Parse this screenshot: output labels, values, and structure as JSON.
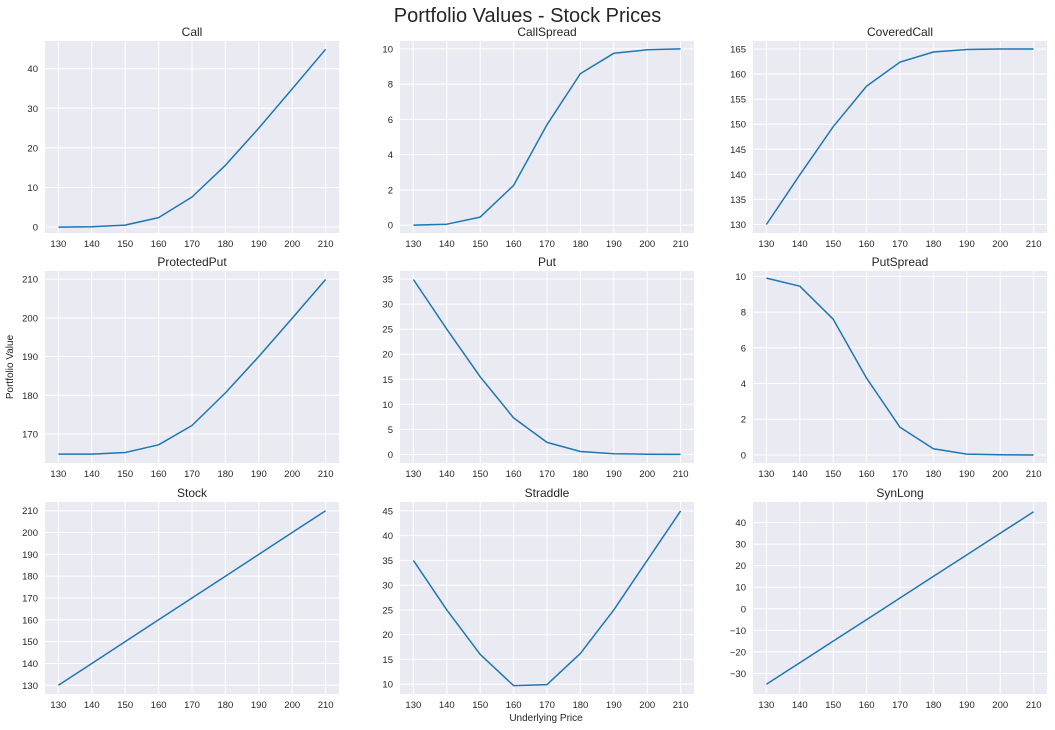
{
  "figure": {
    "title": "Portfolio Values - Stock Prices",
    "ylabel": "Portfolio Value",
    "xlabel": "Underlying Price",
    "colors": {
      "background": "#eaeaf2",
      "grid": "#ffffff",
      "line": "#1f77b4"
    }
  },
  "chart_data": [
    {
      "type": "line",
      "title": "Call",
      "x": [
        130,
        140,
        150,
        160,
        170,
        180,
        190,
        200,
        210
      ],
      "values": [
        0.0,
        0.1,
        0.5,
        2.4,
        7.6,
        15.6,
        25.0,
        34.9,
        44.9
      ],
      "ylim": [
        -1.5,
        47
      ],
      "yticks": [
        0,
        10,
        20,
        30,
        40
      ]
    },
    {
      "type": "line",
      "title": "CallSpread",
      "x": [
        130,
        140,
        150,
        160,
        170,
        180,
        190,
        200,
        210
      ],
      "values": [
        0.0,
        0.05,
        0.45,
        2.25,
        5.7,
        8.6,
        9.75,
        9.95,
        10.0
      ],
      "ylim": [
        -0.45,
        10.45
      ],
      "yticks": [
        0,
        2,
        4,
        6,
        8,
        10
      ]
    },
    {
      "type": "line",
      "title": "CoveredCall",
      "x": [
        130,
        140,
        150,
        160,
        170,
        180,
        190,
        200,
        210
      ],
      "values": [
        130.0,
        139.9,
        149.5,
        157.6,
        162.4,
        164.4,
        164.9,
        165.0,
        165.0
      ],
      "ylim": [
        128.3,
        166.6
      ],
      "yticks": [
        130,
        135,
        140,
        145,
        150,
        155,
        160,
        165
      ]
    },
    {
      "type": "line",
      "title": "ProtectedPut",
      "x": [
        130,
        140,
        150,
        160,
        170,
        180,
        190,
        200,
        210
      ],
      "values": [
        164.8,
        164.8,
        165.2,
        167.2,
        172.2,
        180.6,
        190.0,
        199.9,
        209.9
      ],
      "ylim": [
        162.5,
        212.1
      ],
      "yticks": [
        170,
        180,
        190,
        200,
        210
      ]
    },
    {
      "type": "line",
      "title": "Put",
      "x": [
        130,
        140,
        150,
        160,
        170,
        180,
        190,
        200,
        210
      ],
      "values": [
        34.9,
        25.0,
        15.5,
        7.3,
        2.4,
        0.6,
        0.15,
        0.05,
        0.02
      ],
      "ylim": [
        -1.7,
        36.6
      ],
      "yticks": [
        0,
        5,
        10,
        15,
        20,
        25,
        30,
        35
      ]
    },
    {
      "type": "line",
      "title": "PutSpread",
      "x": [
        130,
        140,
        150,
        160,
        170,
        180,
        190,
        200,
        210
      ],
      "values": [
        9.9,
        9.45,
        7.6,
        4.3,
        1.55,
        0.35,
        0.05,
        0.01,
        0.0
      ],
      "ylim": [
        -0.45,
        10.3
      ],
      "yticks": [
        0,
        2,
        4,
        6,
        8,
        10
      ]
    },
    {
      "type": "line",
      "title": "Stock",
      "x": [
        130,
        140,
        150,
        160,
        170,
        180,
        190,
        200,
        210
      ],
      "values": [
        130,
        140,
        150,
        160,
        170,
        180,
        190,
        200,
        210
      ],
      "ylim": [
        126,
        214
      ],
      "yticks": [
        130,
        140,
        150,
        160,
        170,
        180,
        190,
        200,
        210
      ]
    },
    {
      "type": "line",
      "title": "Straddle",
      "x": [
        130,
        140,
        150,
        160,
        170,
        180,
        190,
        200,
        210
      ],
      "values": [
        35.0,
        25.0,
        16.0,
        9.7,
        9.9,
        16.2,
        25.0,
        35.0,
        45.0
      ],
      "ylim": [
        8.0,
        46.8
      ],
      "yticks": [
        10,
        15,
        20,
        25,
        30,
        35,
        40,
        45
      ]
    },
    {
      "type": "line",
      "title": "SynLong",
      "x": [
        130,
        140,
        150,
        160,
        170,
        180,
        190,
        200,
        210
      ],
      "values": [
        -35,
        -25,
        -15,
        -5,
        5,
        15,
        25,
        35,
        45
      ],
      "ylim": [
        -39.5,
        49.5
      ],
      "yticks": [
        -30,
        -20,
        -10,
        0,
        10,
        20,
        30,
        40
      ]
    }
  ]
}
